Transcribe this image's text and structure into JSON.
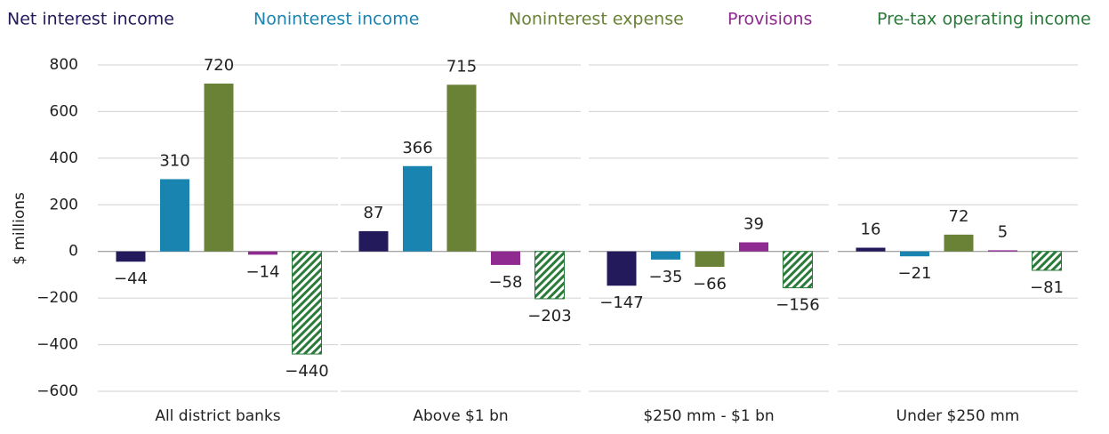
{
  "chart_data": {
    "type": "grouped-bar-panels",
    "y_label": "$ millions",
    "categories": [
      "All district banks",
      "Above $1 bn",
      "$250 mm - $1 bn",
      "Under $250 mm"
    ],
    "series": [
      {
        "name": "Net interest income",
        "color": "#231a5c",
        "values": [
          -44,
          87,
          -147,
          16
        ],
        "value_labels": [
          "−44",
          "87",
          "−147",
          "16"
        ]
      },
      {
        "name": "Noninterest income",
        "color": "#1a84b0",
        "values": [
          310,
          366,
          -35,
          -21
        ],
        "value_labels": [
          "310",
          "366",
          "−35",
          "−21"
        ]
      },
      {
        "name": "Noninterest expense",
        "color": "#6a8236",
        "values": [
          720,
          715,
          -66,
          72
        ],
        "value_labels": [
          "720",
          "715",
          "−66",
          "72"
        ]
      },
      {
        "name": "Provisions",
        "color": "#8f2a91",
        "values": [
          -14,
          -58,
          39,
          5
        ],
        "value_labels": [
          "−14",
          "−58",
          "39",
          "5"
        ]
      },
      {
        "name": "Pre-tax operating income",
        "color": "#2a7a3a",
        "hatch": true,
        "values": [
          -440,
          -203,
          -156,
          -81
        ],
        "value_labels": [
          "−440",
          "−203",
          "−156",
          "−81"
        ]
      }
    ],
    "ylim": [
      -600,
      800
    ],
    "yticks": [
      {
        "value": -600,
        "label": "−600"
      },
      {
        "value": -400,
        "label": "−400"
      },
      {
        "value": -200,
        "label": "−200"
      },
      0,
      200,
      400,
      600,
      800
    ],
    "grid": true
  }
}
